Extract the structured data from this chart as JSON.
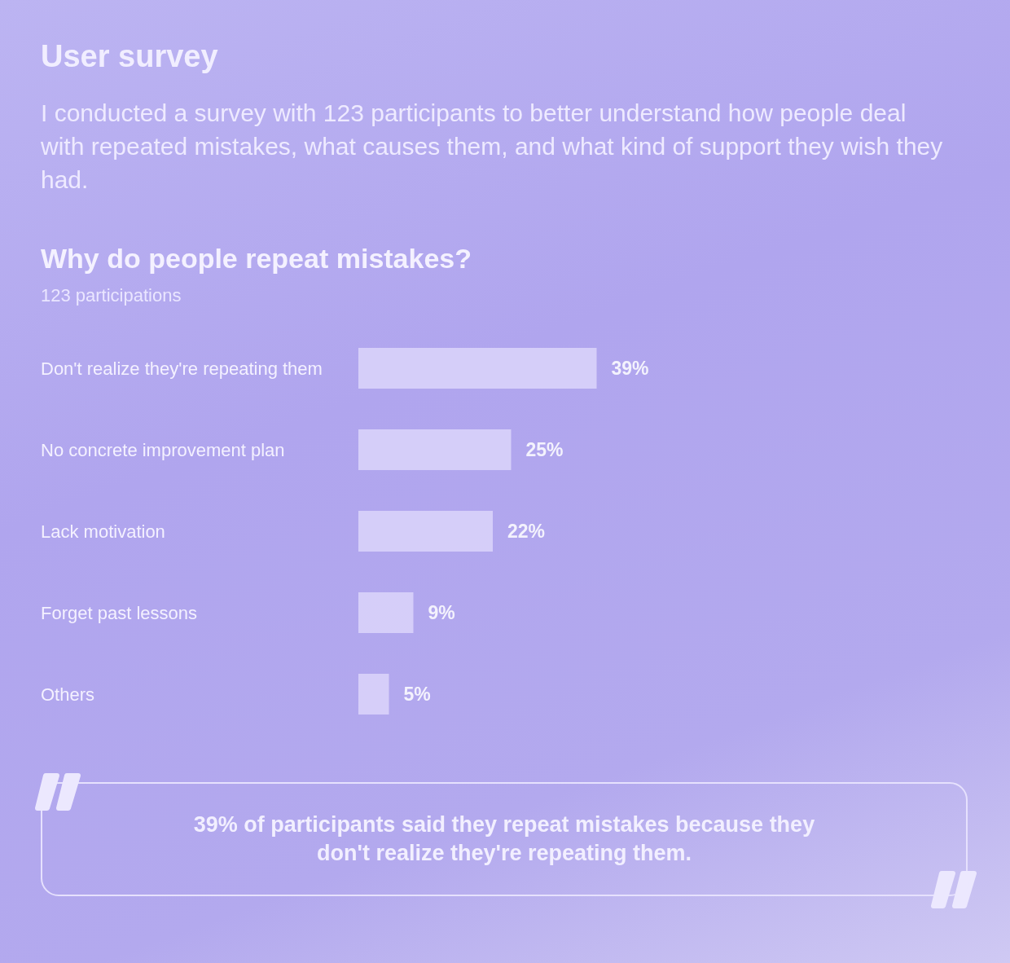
{
  "chart_data": {
    "type": "bar",
    "orientation": "horizontal",
    "title": "Why do people repeat mistakes?",
    "subtitle": "123 participations",
    "categories": [
      "Don't realize they're repeating them",
      "No concrete improvement plan",
      "Lack motivation",
      "Forget past lessons",
      "Others"
    ],
    "values": [
      39,
      25,
      22,
      9,
      5
    ],
    "value_labels": [
      "39%",
      "25%",
      "22%",
      "9%",
      "5%"
    ],
    "color": "#dcd5fa",
    "annotations": [
      "User survey",
      "I conducted a survey with 123 participants to better understand how people deal with repeated mistakes, what causes them, and what kind of support they wish they had.",
      "39% of participants said they repeat mistakes because they don't realize they're repeating them."
    ],
    "grid": false
  }
}
